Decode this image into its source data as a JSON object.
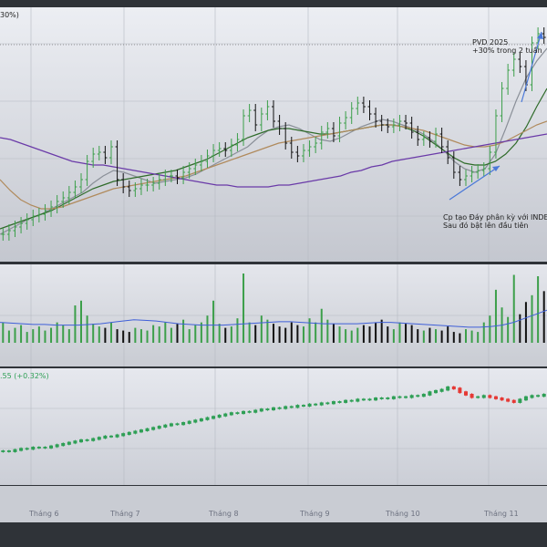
{
  "price_panel": {
    "corner_tag": "30%)",
    "annotation_top_line1": "PVD 2025",
    "annotation_top_line2": "+30% trong 2 tuần",
    "annotation_bottom_line1": "Cp tạo Đáy phân kỳ với INDE",
    "annotation_bottom_line2": "Sau đó bật lên đầu tiên"
  },
  "index_panel": {
    "tag": ".55 (+0.32%)"
  },
  "colors": {
    "up": "#3c9f4a",
    "down": "#111111",
    "index_up": "#2e9f55",
    "index_down": "#e53935",
    "ma_fast": "#8a8f98",
    "ma_mid": "#2f6b2a",
    "ma_slow": "#b08a5c",
    "ma_long": "#6a3aa8",
    "volume_ma": "#3f5fd8",
    "arrow": "#4a78d8"
  },
  "chart_data": [
    {
      "type": "ohlc",
      "name": "price",
      "x_labels": [
        "Tháng 6",
        "Tháng 7",
        "Tháng 8",
        "Tháng 9",
        "Tháng 10",
        "Tháng 11"
      ],
      "close": [
        7.0,
        7.2,
        7.4,
        7.6,
        7.8,
        8.0,
        8.1,
        8.3,
        8.5,
        8.8,
        9.0,
        9.3,
        9.6,
        10.0,
        11.0,
        11.4,
        11.5,
        11.2,
        11.8,
        10.0,
        9.6,
        9.4,
        9.5,
        9.7,
        9.7,
        9.8,
        10.0,
        10.2,
        10.2,
        10.1,
        10.4,
        10.6,
        10.8,
        11.0,
        11.3,
        11.6,
        11.7,
        11.6,
        11.9,
        12.2,
        13.5,
        13.8,
        13.0,
        13.6,
        14.0,
        13.2,
        12.8,
        12.0,
        11.5,
        11.3,
        11.6,
        11.8,
        12.0,
        12.6,
        12.8,
        12.4,
        13.1,
        13.4,
        13.9,
        14.2,
        14.0,
        13.6,
        13.2,
        13.0,
        12.9,
        13.0,
        13.2,
        13.1,
        12.6,
        12.2,
        12.3,
        12.1,
        12.5,
        11.8,
        11.2,
        10.4,
        10.0,
        10.2,
        10.4,
        10.5,
        10.6,
        11.5,
        13.5,
        15.0,
        16.0,
        16.6,
        16.2,
        15.2,
        17.5,
        18.0,
        17.8
      ],
      "high_lines": [
        {
          "name": "ma_fast",
          "values": [
            7.0,
            7.3,
            7.6,
            7.9,
            8.1,
            8.4,
            8.7,
            9.0,
            9.3,
            9.8,
            10.2,
            10.5,
            10.4,
            10.2,
            10.0,
            9.8,
            9.9,
            10.0,
            10.1,
            10.3,
            10.6,
            10.9,
            11.2,
            11.5,
            11.8,
            12.3,
            12.7,
            12.9,
            13.0,
            12.8,
            12.5,
            12.2,
            12.1,
            12.3,
            12.6,
            12.9,
            13.1,
            13.3,
            13.2,
            13.0,
            12.8,
            12.5,
            12.1,
            11.6,
            11.0,
            10.6,
            10.4,
            10.6,
            11.4,
            12.8,
            14.3,
            15.6,
            16.5,
            17.2
          ]
        },
        {
          "name": "ma_mid",
          "values": [
            7.3,
            7.5,
            7.7,
            7.9,
            8.1,
            8.3,
            8.6,
            8.9,
            9.2,
            9.5,
            9.7,
            9.9,
            10.0,
            10.1,
            10.2,
            10.3,
            10.4,
            10.5,
            10.7,
            10.9,
            11.1,
            11.4,
            11.7,
            12.0,
            12.3,
            12.5,
            12.7,
            12.8,
            12.8,
            12.7,
            12.6,
            12.5,
            12.5,
            12.6,
            12.7,
            12.8,
            12.9,
            13.0,
            13.0,
            12.9,
            12.7,
            12.4,
            12.0,
            11.6,
            11.2,
            10.9,
            10.8,
            10.8,
            11.0,
            11.4,
            12.0,
            12.9,
            14.0,
            15.0
          ]
        },
        {
          "name": "ma_slow",
          "values": [
            10.0,
            9.4,
            8.9,
            8.6,
            8.4,
            8.4,
            8.5,
            8.7,
            8.9,
            9.1,
            9.3,
            9.5,
            9.6,
            9.7,
            9.8,
            9.9,
            10.0,
            10.1,
            10.2,
            10.4,
            10.6,
            10.8,
            11.0,
            11.2,
            11.4,
            11.6,
            11.8,
            12.0,
            12.1,
            12.2,
            12.3,
            12.4,
            12.5,
            12.6,
            12.7,
            12.8,
            12.9,
            13.0,
            13.0,
            12.9,
            12.8,
            12.7,
            12.5,
            12.3,
            12.1,
            11.9,
            11.8,
            11.8,
            11.9,
            12.1,
            12.4,
            12.7,
            13.0,
            13.2
          ]
        },
        {
          "name": "ma_long",
          "values": [
            12.3,
            12.2,
            12.0,
            11.8,
            11.6,
            11.4,
            11.2,
            11.0,
            10.9,
            10.8,
            10.8,
            10.7,
            10.6,
            10.5,
            10.4,
            10.3,
            10.2,
            10.1,
            10.0,
            9.9,
            9.8,
            9.7,
            9.7,
            9.6,
            9.6,
            9.6,
            9.6,
            9.7,
            9.7,
            9.8,
            9.9,
            10.0,
            10.1,
            10.2,
            10.4,
            10.5,
            10.7,
            10.8,
            11.0,
            11.1,
            11.2,
            11.3,
            11.4,
            11.5,
            11.6,
            11.7,
            11.8,
            11.9,
            12.0,
            12.1,
            12.2,
            12.3,
            12.4,
            12.5
          ]
        }
      ],
      "y_range": [
        6.0,
        19.0
      ]
    },
    {
      "type": "bar",
      "name": "volume",
      "values": [
        30,
        18,
        22,
        26,
        16,
        20,
        24,
        18,
        22,
        30,
        26,
        20,
        55,
        62,
        40,
        28,
        24,
        22,
        30,
        20,
        18,
        16,
        22,
        20,
        18,
        26,
        24,
        30,
        22,
        28,
        34,
        20,
        26,
        30,
        40,
        62,
        28,
        22,
        24,
        36,
        102,
        30,
        26,
        40,
        34,
        28,
        24,
        22,
        30,
        26,
        24,
        36,
        30,
        50,
        34,
        28,
        24,
        20,
        18,
        22,
        26,
        24,
        30,
        34,
        24,
        20,
        30,
        28,
        26,
        20,
        18,
        22,
        20,
        18,
        24,
        16,
        14,
        20,
        18,
        16,
        30,
        40,
        78,
        52,
        38,
        100,
        42,
        60,
        70,
        98,
        76
      ],
      "ma": [
        30,
        29,
        28,
        27,
        27,
        26,
        26,
        26,
        27,
        28,
        30,
        32,
        34,
        33,
        32,
        30,
        28,
        27,
        26,
        26,
        26,
        27,
        28,
        29,
        30,
        31,
        31,
        30,
        29,
        28,
        28,
        28,
        28,
        29,
        30,
        30,
        29,
        28,
        27,
        26,
        25,
        24,
        23,
        23,
        24,
        26,
        30,
        36,
        42,
        48
      ],
      "y_range": [
        0,
        110
      ]
    },
    {
      "type": "candlestick",
      "name": "index",
      "close": [
        80,
        80,
        81,
        82,
        82,
        83,
        83,
        83,
        84,
        85,
        86,
        87,
        88,
        89,
        89,
        90,
        91,
        92,
        92,
        93,
        94,
        95,
        96,
        97,
        98,
        99,
        100,
        101,
        102,
        102,
        103,
        104,
        105,
        106,
        107,
        108,
        109,
        110,
        111,
        111,
        112,
        112,
        113,
        114,
        114,
        115,
        115,
        116,
        116,
        117,
        117,
        118,
        118,
        119,
        119,
        120,
        120,
        121,
        121,
        122,
        122,
        122,
        123,
        123,
        123,
        124,
        124,
        124,
        125,
        125,
        126,
        128,
        129,
        130,
        132,
        131,
        128,
        126,
        124,
        124,
        125,
        124,
        123,
        122,
        121,
        120,
        122,
        124,
        125,
        125,
        126
      ],
      "y_range": [
        60,
        140
      ]
    }
  ]
}
